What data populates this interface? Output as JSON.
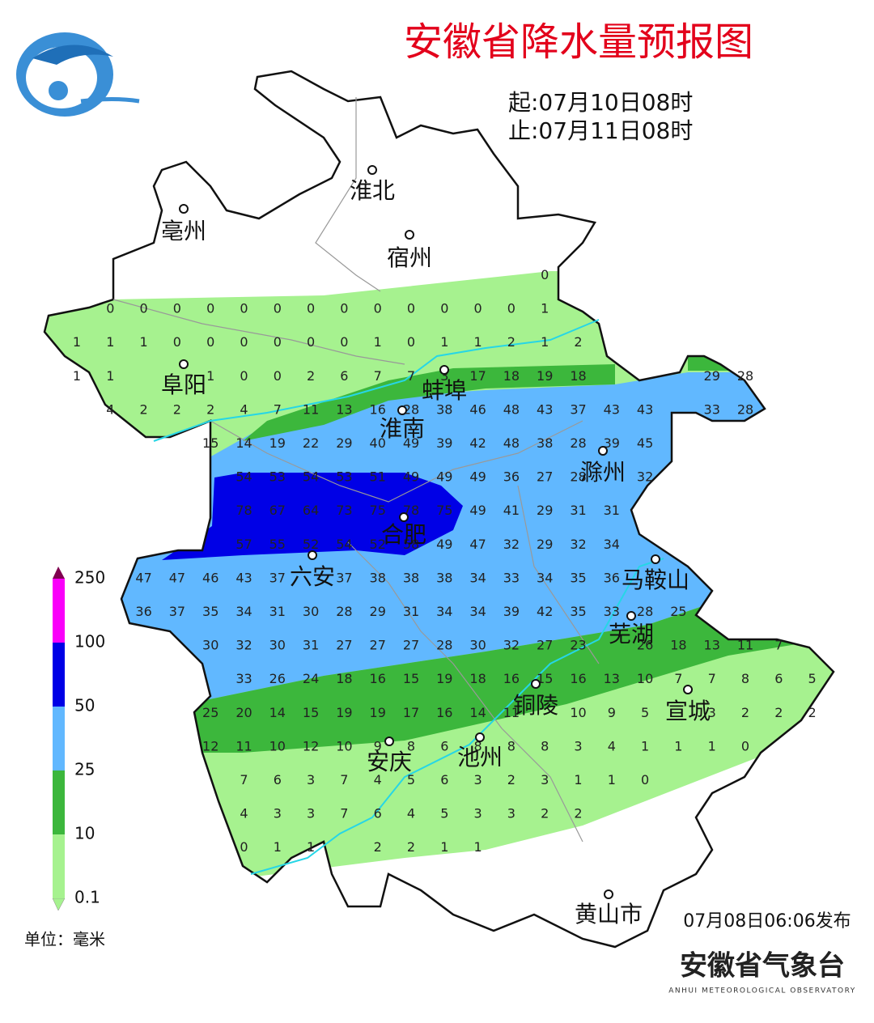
{
  "header": {
    "title": "安徽省降水量预报图",
    "start": "起:07月10日08时",
    "end": "止:07月11日08时"
  },
  "cities": [
    "淮北",
    "亳州",
    "宿州",
    "阜阳",
    "蚌埠",
    "淮南",
    "滁州",
    "合肥",
    "六安",
    "马鞍山",
    "芜湖",
    "宣城",
    "铜陵",
    "安庆",
    "池州",
    "黄山市"
  ],
  "grid": {
    "rows": [
      [
        null,
        null,
        null,
        null,
        null,
        null,
        null,
        null,
        null,
        null,
        null,
        null,
        null,
        null,
        0
      ],
      [
        null,
        0,
        0,
        0,
        0,
        0,
        0,
        0,
        0,
        0,
        0,
        0,
        0,
        0,
        1
      ],
      [
        1,
        1,
        1,
        0,
        0,
        0,
        0,
        0,
        0,
        1,
        0,
        1,
        1,
        2,
        1,
        2
      ],
      [
        1,
        1,
        null,
        null,
        1,
        0,
        0,
        2,
        6,
        7,
        7,
        3,
        17,
        18,
        19,
        18,
        null,
        null,
        null,
        29,
        28
      ],
      [
        null,
        4,
        2,
        2,
        2,
        4,
        7,
        11,
        13,
        16,
        28,
        38,
        46,
        48,
        43,
        37,
        43,
        43,
        null,
        33,
        28
      ],
      [
        null,
        null,
        null,
        null,
        15,
        14,
        19,
        22,
        29,
        40,
        49,
        39,
        42,
        48,
        38,
        28,
        39,
        45
      ],
      [
        null,
        null,
        null,
        null,
        null,
        54,
        53,
        54,
        53,
        51,
        49,
        49,
        49,
        36,
        27,
        28,
        null,
        32
      ],
      [
        null,
        null,
        null,
        null,
        null,
        78,
        67,
        64,
        73,
        75,
        78,
        75,
        49,
        41,
        29,
        31,
        31
      ],
      [
        null,
        null,
        null,
        null,
        null,
        57,
        55,
        52,
        54,
        52,
        58,
        49,
        47,
        32,
        29,
        32,
        34
      ],
      [
        null,
        null,
        47,
        47,
        46,
        43,
        37,
        null,
        37,
        38,
        38,
        38,
        34,
        33,
        34,
        35,
        36
      ],
      [
        null,
        null,
        36,
        37,
        35,
        34,
        31,
        30,
        28,
        29,
        31,
        34,
        34,
        39,
        42,
        35,
        33,
        28,
        25
      ],
      [
        null,
        null,
        null,
        null,
        30,
        32,
        30,
        31,
        27,
        27,
        27,
        28,
        30,
        32,
        27,
        23,
        null,
        26,
        18,
        13,
        11,
        7
      ],
      [
        null,
        null,
        null,
        null,
        null,
        33,
        26,
        24,
        18,
        16,
        15,
        19,
        18,
        16,
        15,
        16,
        13,
        10,
        7,
        7,
        8,
        6,
        5
      ],
      [
        null,
        null,
        null,
        null,
        25,
        20,
        14,
        15,
        19,
        19,
        17,
        16,
        14,
        11,
        null,
        10,
        9,
        5,
        null,
        3,
        2,
        2,
        2
      ],
      [
        null,
        null,
        null,
        null,
        12,
        11,
        10,
        12,
        10,
        9,
        8,
        6,
        8,
        8,
        8,
        3,
        4,
        1,
        1,
        1,
        0
      ],
      [
        null,
        null,
        null,
        null,
        null,
        7,
        6,
        3,
        7,
        4,
        5,
        6,
        3,
        2,
        3,
        1,
        1,
        0
      ],
      [
        null,
        null,
        null,
        null,
        null,
        4,
        3,
        3,
        7,
        6,
        4,
        5,
        3,
        3,
        2,
        2
      ],
      [
        null,
        null,
        null,
        null,
        null,
        0,
        1,
        1,
        null,
        2,
        2,
        1,
        1
      ]
    ]
  },
  "legend": {
    "levels": [
      0.1,
      10,
      25,
      50,
      100,
      250
    ],
    "colors": [
      "#a6f28f",
      "#3cb73c",
      "#61b8ff",
      "#0000e6",
      "#fa00fa"
    ],
    "unit": "单位：毫米"
  },
  "footer": {
    "issued": "07月08日06:06发布",
    "org": "安徽省气象台",
    "org_en": "ANHUI METEOROLOGICAL OBSERVATORY"
  }
}
